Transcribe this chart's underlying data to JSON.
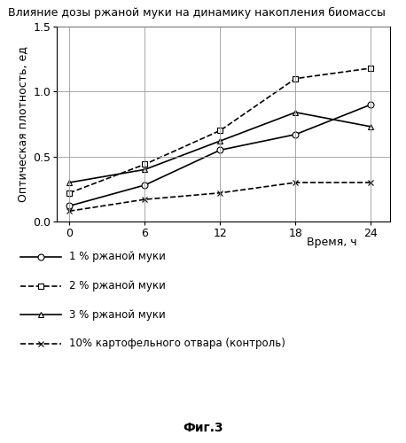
{
  "title": "Влияние дозы ржаной муки на динамику накопления биомассы",
  "xlabel": "Время, ч",
  "ylabel": "Оптическая плотность, ед",
  "x": [
    0,
    6,
    12,
    18,
    24
  ],
  "series": [
    {
      "label": "1 % ржаной муки",
      "y": [
        0.12,
        0.28,
        0.55,
        0.67,
        0.9
      ],
      "linestyle": "-",
      "marker": "o",
      "markersize": 5,
      "color": "#000000",
      "linewidth": 1.2,
      "markerfacecolor": "white"
    },
    {
      "label": "2 % ржаной муки",
      "y": [
        0.22,
        0.44,
        0.7,
        1.1,
        1.18
      ],
      "linestyle": "--",
      "marker": "s",
      "markersize": 5,
      "color": "#000000",
      "linewidth": 1.2,
      "markerfacecolor": "white"
    },
    {
      "label": "3 % ржаной муки",
      "y": [
        0.3,
        0.4,
        0.62,
        0.84,
        0.73
      ],
      "linestyle": "-",
      "marker": "^",
      "markersize": 5,
      "color": "#000000",
      "linewidth": 1.2,
      "markerfacecolor": "white"
    },
    {
      "label": "10% картофельного отвара (контроль)",
      "y": [
        0.08,
        0.17,
        0.22,
        0.3,
        0.3
      ],
      "linestyle": "--",
      "marker": "x",
      "markersize": 5,
      "color": "#000000",
      "linewidth": 1.2,
      "markerfacecolor": "#000000"
    }
  ],
  "ylim": [
    0,
    1.5
  ],
  "yticks": [
    0,
    0.5,
    1.0,
    1.5
  ],
  "xticks": [
    0,
    6,
    12,
    18,
    24
  ],
  "grid": true,
  "figsize": [
    4.58,
    5.0
  ],
  "dpi": 100,
  "background_color": "#ffffff",
  "fig3_label": "Фиг.3"
}
